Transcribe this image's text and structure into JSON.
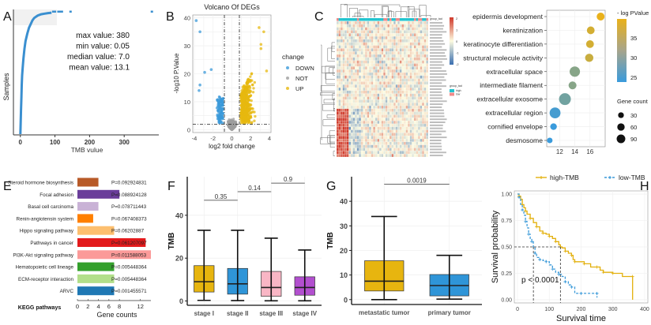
{
  "panel_labels": [
    "A",
    "B",
    "C",
    "D",
    "E",
    "F",
    "G",
    "H"
  ],
  "chart_data": [
    {
      "id": "A",
      "type": "line",
      "title": "",
      "xlabel": "TMB vulue",
      "ylabel": "Samples",
      "xticks": [
        0,
        100,
        200,
        300
      ],
      "xlim": [
        -20,
        400
      ],
      "annotations": [
        "max value: 380",
        "min value: 0.05",
        "median value: 7.0",
        "mean value: 13.1"
      ],
      "stats": {
        "max": 380,
        "min": 0.05,
        "median": 7.0,
        "mean": 13.1
      },
      "color": "#3a8fd0",
      "curve_x": [
        0,
        1,
        2,
        3,
        4,
        5,
        7,
        9,
        12,
        15,
        20,
        25,
        30,
        35,
        40,
        45,
        50,
        60,
        70,
        80,
        90
      ],
      "curve_y": [
        0,
        0.1,
        0.2,
        0.3,
        0.4,
        0.48,
        0.55,
        0.62,
        0.7,
        0.76,
        0.82,
        0.87,
        0.9,
        0.93,
        0.95,
        0.96,
        0.97,
        0.98,
        0.985,
        0.99,
        0.993
      ],
      "outliers_x": [
        95,
        100,
        110,
        115,
        120,
        145,
        380
      ]
    },
    {
      "id": "B",
      "type": "scatter",
      "title": "Volcano Of DEGs",
      "xlabel": "log2 fold change",
      "ylabel": "-log10 P.Value",
      "xlim": [
        -4,
        4
      ],
      "ylim": [
        -1,
        41
      ],
      "xticks": [
        -4,
        -2,
        0,
        2,
        4
      ],
      "yticks": [
        0,
        10,
        20,
        30,
        40
      ],
      "thresholds": {
        "logfc": 0.8,
        "p": 2
      },
      "legend": {
        "title": "change",
        "entries": [
          {
            "name": "DOWN",
            "color": "#3b9ad9"
          },
          {
            "name": "NOT",
            "color": "#9e9e9e"
          },
          {
            "name": "UP",
            "color": "#e7b80f"
          }
        ],
        "position": "right"
      },
      "highlight_points": [
        {
          "x": -3.8,
          "y": 39,
          "group": "DOWN"
        },
        {
          "x": -3.4,
          "y": 35,
          "group": "DOWN"
        },
        {
          "x": -2.9,
          "y": 20.5,
          "group": "DOWN"
        },
        {
          "x": -2.2,
          "y": 21.5,
          "group": "DOWN"
        },
        {
          "x": -3.4,
          "y": 16,
          "group": "DOWN"
        },
        {
          "x": -3.5,
          "y": 14,
          "group": "DOWN"
        },
        {
          "x": 2.9,
          "y": 36.5,
          "group": "UP"
        },
        {
          "x": 3.4,
          "y": 35,
          "group": "UP"
        },
        {
          "x": 3.1,
          "y": 30.5,
          "group": "UP"
        },
        {
          "x": 3.1,
          "y": 29,
          "group": "UP"
        },
        {
          "x": 3.7,
          "y": 21,
          "group": "UP"
        }
      ]
    },
    {
      "id": "C",
      "type": "heatmap",
      "colorbar": {
        "ticks": [
          2,
          1,
          0,
          -1,
          -2
        ],
        "low": "#3a6fb0",
        "mid": "#fdfbe0",
        "high": "#d0392b"
      },
      "annotation_legend": {
        "title": "group_tad",
        "entries": [
          {
            "name": "high",
            "color": "#22c4cf"
          },
          {
            "name": "low",
            "color": "#f08a8a"
          }
        ]
      },
      "annotation_title": "group_tad",
      "rows": 45,
      "cols": 45
    },
    {
      "id": "D",
      "type": "scatter",
      "title": "",
      "categories": [
        "epidermis development",
        "keratinization",
        "keratinocyte differentiation",
        "structural molecule activity",
        "extracellular space",
        "intermediate filament",
        "extracellular exosome",
        "extracellular region",
        "cornified envelope",
        "desmosome"
      ],
      "x": [
        17.4,
        16.1,
        16.0,
        15.9,
        14.0,
        13.7,
        12.7,
        11.4,
        11.2,
        10.7
      ],
      "neg_log_p": [
        40,
        38,
        38,
        37,
        31,
        31,
        29,
        25,
        24,
        24
      ],
      "gene_count": [
        40,
        38,
        38,
        45,
        80,
        40,
        110,
        90,
        25,
        15
      ],
      "xticks": [
        12,
        14,
        16
      ],
      "xlim": [
        10.3,
        18
      ],
      "colorbar": {
        "title": "- log PValue",
        "ticks": [
          35,
          30,
          25
        ],
        "low": "#3a9bdc",
        "high": "#e9b11b",
        "range": [
          24,
          40
        ]
      },
      "size_legend": {
        "title": "Gene count",
        "entries": [
          30,
          60,
          90
        ]
      }
    },
    {
      "id": "E",
      "type": "bar",
      "orientation": "horizontal",
      "categories": [
        "Steroid hormone biosynthesis",
        "Focal adhesion",
        "Basal cell carcinoma",
        "Renin-angiotensin system",
        "Hippo signaling pathway",
        "Pathways in cancer",
        "PI3K-Akt signaling pathway",
        "Hematopoietic cell lineage",
        "ECM-receptor interaction",
        "ARVC"
      ],
      "values": [
        4,
        8,
        4,
        3,
        7,
        13,
        14,
        7,
        7,
        7
      ],
      "pvalues": [
        "P=0.092924831",
        "P=0.088924128",
        "P=0.078711443",
        "P=0.067408373",
        "P=0.06202887",
        "P=0.061207097",
        "P=0.011588053",
        "P=0.005448364",
        "P=0.005448364",
        "P=0.001455571"
      ],
      "colors": [
        "#b85a28",
        "#6a3d9a",
        "#c9b2d6",
        "#ff7f00",
        "#fdbf6f",
        "#e31a1c",
        "#fb9a99",
        "#33a02c",
        "#b2df8a",
        "#1f78b4"
      ],
      "xlabel": "Gene counts",
      "ylabel": "KEGG pathways",
      "xticks": [
        0,
        2,
        4,
        6,
        8,
        12
      ],
      "xlim": [
        0,
        14
      ]
    },
    {
      "id": "F",
      "type": "box",
      "categories": [
        "stage I",
        "stage II",
        "stage III",
        "stage IV"
      ],
      "colors": [
        "#e7b50f",
        "#2f95d8",
        "#f9b6c5",
        "#b24fcf"
      ],
      "boxes": [
        {
          "min": 0.3,
          "q1": 4.2,
          "median": 9.0,
          "q3": 16.5,
          "max": 33
        },
        {
          "min": 0.2,
          "q1": 3.2,
          "median": 8.0,
          "q3": 15.2,
          "max": 33
        },
        {
          "min": 0.1,
          "q1": 2.2,
          "median": 6.3,
          "q3": 13.8,
          "max": 29.3
        },
        {
          "min": 0.1,
          "q1": 2.7,
          "median": 6.3,
          "q3": 11.3,
          "max": 23.8
        }
      ],
      "comparisons": [
        {
          "pair": [
            0,
            1
          ],
          "p": "0.35",
          "y": 47
        },
        {
          "pair": [
            1,
            2
          ],
          "p": "0.14",
          "y": 51
        },
        {
          "pair": [
            2,
            3
          ],
          "p": "0.9",
          "y": 55
        }
      ],
      "ylabel": "TMB",
      "yticks": [
        0,
        20,
        40
      ],
      "ylim": [
        -2,
        58
      ]
    },
    {
      "id": "G",
      "type": "box",
      "categories": [
        "metastatic tumor",
        "primary tumor"
      ],
      "colors": [
        "#e7b50f",
        "#2f95d8"
      ],
      "boxes": [
        {
          "min": 0,
          "q1": 3.5,
          "median": 7.5,
          "q3": 15.8,
          "max": 33.8
        },
        {
          "min": 0.2,
          "q1": 1.5,
          "median": 5.7,
          "q3": 10.2,
          "max": 18
        }
      ],
      "comparisons": [
        {
          "pair": [
            0,
            1
          ],
          "p": "0.0019",
          "y": 47
        }
      ],
      "ylabel": "TMB",
      "yticks": [
        0,
        10,
        20,
        30,
        40
      ],
      "ylim": [
        -2,
        50
      ]
    },
    {
      "id": "H",
      "type": "line",
      "xlabel": "Survival time",
      "ylabel": "Survival probability",
      "xticks": [
        0,
        100,
        200,
        300,
        400
      ],
      "yticks": [
        "0.00",
        "0.25",
        "0.50",
        "0.75",
        "1.00"
      ],
      "xlim": [
        -10,
        410
      ],
      "ylim": [
        -0.03,
        1.03
      ],
      "annotation": "p < 0.0001",
      "median_survival": {
        "high-TMB": 135,
        "low-TMB": 50
      },
      "legend": {
        "position": "top",
        "entries": [
          {
            "name": "high-TMB",
            "color": "#e3b00c"
          },
          {
            "name": "low-TMB",
            "color": "#3b9ad9"
          }
        ]
      },
      "series": [
        {
          "name": "high-TMB",
          "x": [
            0,
            5,
            10,
            15,
            20,
            25,
            30,
            40,
            50,
            60,
            70,
            80,
            90,
            100,
            110,
            120,
            130,
            135,
            140,
            150,
            160,
            170,
            175,
            180,
            200,
            210,
            230,
            250,
            260,
            270,
            280,
            300,
            330,
            362,
            362
          ],
          "y": [
            1,
            0.98,
            0.95,
            0.9,
            0.87,
            0.84,
            0.81,
            0.77,
            0.73,
            0.69,
            0.65,
            0.63,
            0.62,
            0.6,
            0.58,
            0.55,
            0.52,
            0.5,
            0.49,
            0.46,
            0.44,
            0.42,
            0.38,
            0.36,
            0.36,
            0.34,
            0.31,
            0.31,
            0.28,
            0.26,
            0.26,
            0.25,
            0.22,
            0.22,
            0
          ]
        },
        {
          "name": "low-TMB",
          "x": [
            0,
            5,
            10,
            15,
            20,
            25,
            30,
            35,
            40,
            45,
            50,
            55,
            60,
            70,
            80,
            90,
            100,
            110,
            120,
            130,
            140,
            150,
            160,
            170,
            180,
            200,
            230,
            250,
            250
          ],
          "y": [
            1,
            0.97,
            0.9,
            0.85,
            0.8,
            0.74,
            0.68,
            0.62,
            0.58,
            0.55,
            0.5,
            0.44,
            0.4,
            0.38,
            0.37,
            0.36,
            0.33,
            0.29,
            0.26,
            0.24,
            0.22,
            0.17,
            0.14,
            0.12,
            0.06,
            0.06,
            0.06,
            0.06,
            0.02
          ]
        }
      ]
    }
  ]
}
